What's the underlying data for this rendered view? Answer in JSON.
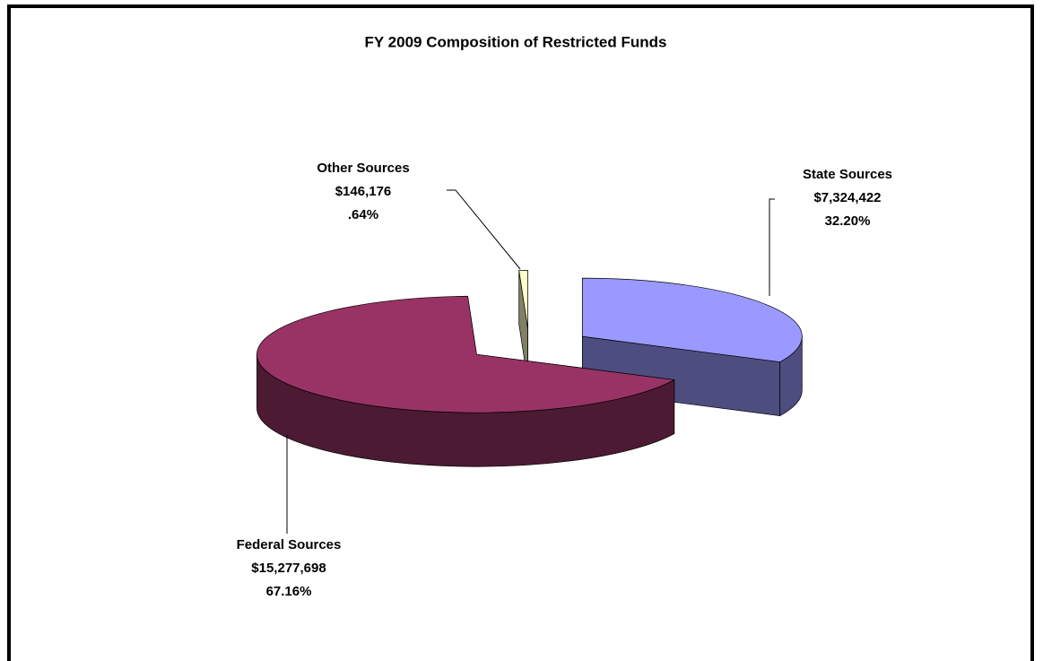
{
  "chart_data": {
    "type": "pie",
    "title": "FY 2009 Composition of Restricted Funds",
    "categories": [
      "State Sources",
      "Federal Sources",
      "Other Sources"
    ],
    "values": [
      7324422,
      15277698,
      146176
    ],
    "value_labels": [
      "$7,324,422",
      "$15,277,698",
      "$146,176"
    ],
    "percents": [
      32.2,
      67.16,
      0.64
    ],
    "percent_labels": [
      "32.20%",
      "67.16%",
      ".64%"
    ],
    "colors": [
      "#9999ff",
      "#993366",
      "#ffffcc"
    ]
  }
}
